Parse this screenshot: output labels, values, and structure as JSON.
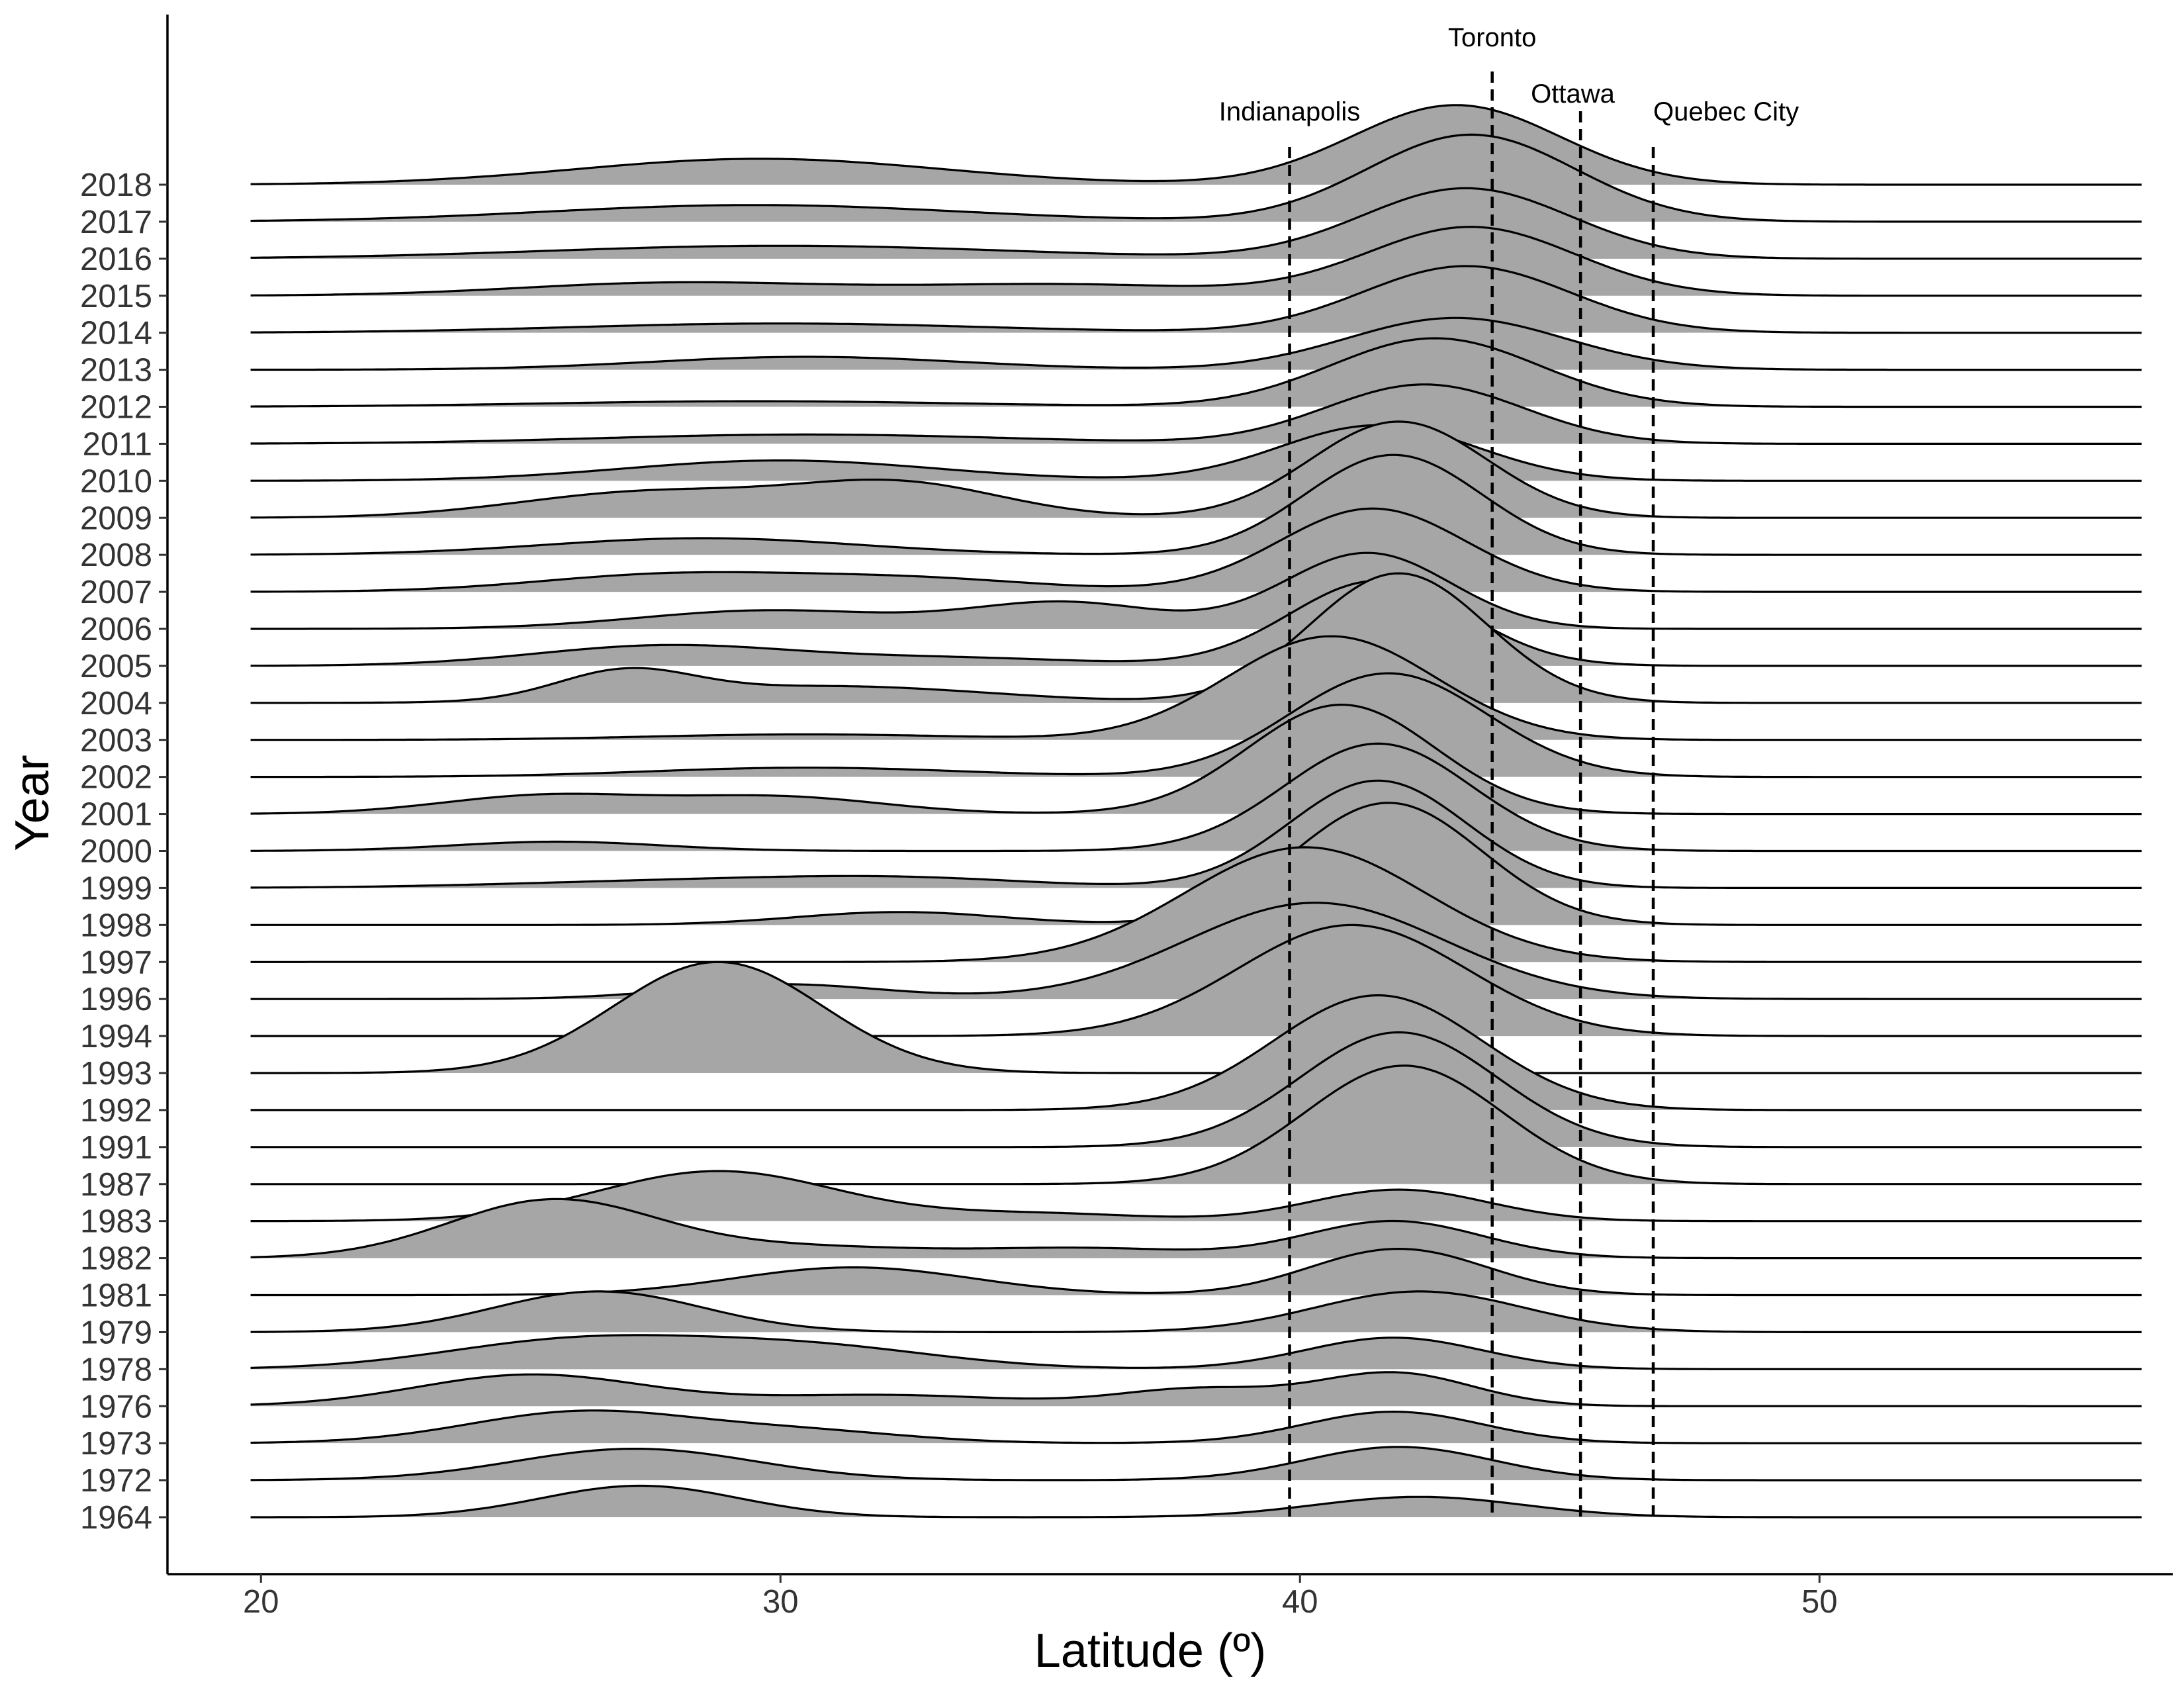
{
  "chart_data": {
    "type": "ridgeline",
    "title": "",
    "xlabel": "Latitude (º)",
    "ylabel": "Year",
    "xlim": [
      18.2,
      56.8
    ],
    "x_ticks": [
      20,
      30,
      40,
      50
    ],
    "density_x_range": [
      19.8,
      56.2
    ],
    "grid": false,
    "fill_color": "#a6a6a6",
    "line_color": "#000000",
    "reference_lines": [
      {
        "name": "Indianapolis",
        "x": 39.8
      },
      {
        "name": "Toronto",
        "x": 43.7
      },
      {
        "name": "Ottawa",
        "x": 45.4
      },
      {
        "name": "Quebec City",
        "x": 46.8
      }
    ],
    "series": [
      {
        "name": "1964",
        "components": [
          [
            27.3,
            1.9,
            0.85
          ],
          [
            42.3,
            2.0,
            0.55
          ]
        ]
      },
      {
        "name": "1972",
        "components": [
          [
            27.2,
            2.3,
            0.85
          ],
          [
            41.9,
            1.8,
            0.9
          ]
        ]
      },
      {
        "name": "1973",
        "components": [
          [
            26.2,
            2.2,
            0.85
          ],
          [
            30.5,
            2.0,
            0.3
          ],
          [
            41.8,
            1.7,
            0.85
          ]
        ]
      },
      {
        "name": "1976",
        "components": [
          [
            25.2,
            2.2,
            0.85
          ],
          [
            32.0,
            2.5,
            0.3
          ],
          [
            38.0,
            1.5,
            0.45
          ],
          [
            41.8,
            1.5,
            0.9
          ]
        ]
      },
      {
        "name": "1978",
        "components": [
          [
            26.0,
            2.5,
            0.75
          ],
          [
            30.5,
            2.5,
            0.6
          ],
          [
            41.8,
            1.7,
            0.85
          ]
        ]
      },
      {
        "name": "1979",
        "components": [
          [
            26.5,
            2.0,
            1.1
          ],
          [
            42.3,
            2.0,
            1.1
          ]
        ]
      },
      {
        "name": "1981",
        "components": [
          [
            31.4,
            2.3,
            0.75
          ],
          [
            41.9,
            1.7,
            1.25
          ]
        ]
      },
      {
        "name": "1982",
        "components": [
          [
            25.6,
            2.0,
            1.55
          ],
          [
            30.5,
            2.5,
            0.3
          ],
          [
            36.0,
            2.0,
            0.25
          ],
          [
            41.8,
            1.7,
            1.0
          ]
        ]
      },
      {
        "name": "1983",
        "components": [
          [
            28.8,
            2.3,
            1.35
          ],
          [
            35.0,
            2.0,
            0.2
          ],
          [
            41.9,
            1.7,
            0.85
          ]
        ]
      },
      {
        "name": "1987",
        "components": [
          [
            42.0,
            1.9,
            3.2
          ]
        ]
      },
      {
        "name": "1991",
        "components": [
          [
            41.9,
            1.9,
            3.1
          ]
        ]
      },
      {
        "name": "1992",
        "components": [
          [
            41.5,
            2.0,
            3.1
          ]
        ]
      },
      {
        "name": "1993",
        "components": [
          [
            28.8,
            2.0,
            3.0
          ]
        ]
      },
      {
        "name": "1994",
        "components": [
          [
            41.0,
            2.2,
            3.0
          ]
        ]
      },
      {
        "name": "1996",
        "components": [
          [
            30.0,
            2.0,
            0.4
          ],
          [
            40.3,
            2.5,
            2.6
          ]
        ]
      },
      {
        "name": "1997",
        "components": [
          [
            40.1,
            2.3,
            3.1
          ]
        ]
      },
      {
        "name": "1998",
        "components": [
          [
            32.3,
            2.0,
            0.35
          ],
          [
            41.7,
            1.8,
            3.3
          ]
        ]
      },
      {
        "name": "1999",
        "components": [
          [
            28.5,
            3.5,
            0.2
          ],
          [
            32.5,
            2.5,
            0.2
          ],
          [
            41.5,
            1.7,
            2.9
          ]
        ]
      },
      {
        "name": "2000",
        "components": [
          [
            25.7,
            2.0,
            0.25
          ],
          [
            41.5,
            1.8,
            2.9
          ]
        ]
      },
      {
        "name": "2001",
        "components": [
          [
            25.5,
            2.0,
            0.5
          ],
          [
            30.0,
            2.0,
            0.45
          ],
          [
            40.8,
            1.8,
            2.95
          ]
        ]
      },
      {
        "name": "2002",
        "components": [
          [
            30.5,
            3.0,
            0.25
          ],
          [
            41.7,
            1.9,
            2.8
          ]
        ]
      },
      {
        "name": "2003",
        "components": [
          [
            30.5,
            3.0,
            0.15
          ],
          [
            40.6,
            2.0,
            2.8
          ]
        ]
      },
      {
        "name": "2004",
        "components": [
          [
            27.0,
            1.3,
            0.75
          ],
          [
            31.0,
            3.0,
            0.45
          ],
          [
            41.9,
            1.7,
            3.5
          ]
        ]
      },
      {
        "name": "2005",
        "components": [
          [
            27.8,
            2.5,
            0.55
          ],
          [
            33.5,
            2.5,
            0.2
          ],
          [
            41.5,
            1.7,
            2.3
          ]
        ]
      },
      {
        "name": "2006",
        "components": [
          [
            29.8,
            2.5,
            0.5
          ],
          [
            35.5,
            1.8,
            0.7
          ],
          [
            41.3,
            1.6,
            2.05
          ]
        ]
      },
      {
        "name": "2007",
        "components": [
          [
            27.8,
            2.5,
            0.45
          ],
          [
            32.5,
            2.5,
            0.35
          ],
          [
            41.4,
            1.8,
            2.25
          ]
        ]
      },
      {
        "name": "2008",
        "components": [
          [
            28.5,
            3.0,
            0.45
          ],
          [
            41.8,
            1.7,
            2.7
          ]
        ]
      },
      {
        "name": "2009",
        "components": [
          [
            27.5,
            2.5,
            0.7
          ],
          [
            32.3,
            2.0,
            0.9
          ],
          [
            41.9,
            1.7,
            2.6
          ]
        ]
      },
      {
        "name": "2010",
        "components": [
          [
            30.0,
            3.0,
            0.55
          ],
          [
            41.5,
            1.9,
            1.5
          ]
        ]
      },
      {
        "name": "2011",
        "components": [
          [
            30.5,
            4.0,
            0.25
          ],
          [
            42.4,
            1.9,
            1.6
          ]
        ]
      },
      {
        "name": "2012",
        "components": [
          [
            29.5,
            4.0,
            0.15
          ],
          [
            42.6,
            2.0,
            1.85
          ]
        ]
      },
      {
        "name": "2013",
        "components": [
          [
            30.5,
            3.0,
            0.35
          ],
          [
            43.0,
            2.1,
            1.4
          ]
        ]
      },
      {
        "name": "2014",
        "components": [
          [
            30.0,
            4.0,
            0.25
          ],
          [
            43.2,
            2.0,
            1.8
          ]
        ]
      },
      {
        "name": "2015",
        "components": [
          [
            28.0,
            3.0,
            0.35
          ],
          [
            35.5,
            3.0,
            0.3
          ],
          [
            43.3,
            2.0,
            1.85
          ]
        ]
      },
      {
        "name": "2016",
        "components": [
          [
            30.0,
            4.5,
            0.35
          ],
          [
            43.2,
            2.0,
            1.9
          ]
        ]
      },
      {
        "name": "2017",
        "components": [
          [
            29.5,
            4.0,
            0.45
          ],
          [
            43.3,
            2.0,
            2.35
          ]
        ]
      },
      {
        "name": "2018",
        "components": [
          [
            29.6,
            3.5,
            0.7
          ],
          [
            43.0,
            2.0,
            2.15
          ]
        ]
      }
    ]
  }
}
